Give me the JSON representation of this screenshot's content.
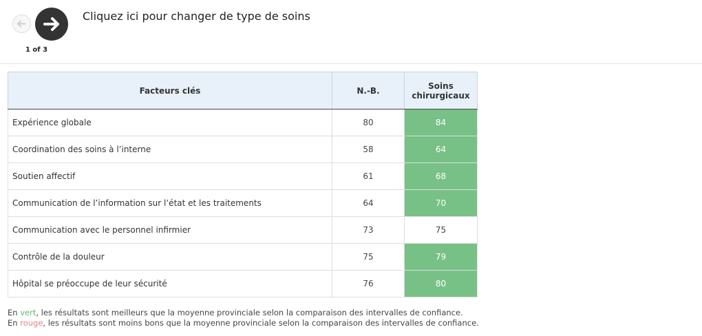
{
  "pager": {
    "position": "1 of 3",
    "title": "Cliquez ici pour changer de type de soins"
  },
  "table": {
    "header": [
      "Facteurs clés",
      "N.-B.",
      "Soins chirurgicaux"
    ],
    "better_color": "#77c186",
    "rows": [
      {
        "label": "Expérience globale",
        "values": [
          80,
          84
        ],
        "better": true
      },
      {
        "label": "Coordination des soins à l’interne",
        "values": [
          58,
          64
        ],
        "better": true
      },
      {
        "label": "Soutien affectif",
        "values": [
          61,
          68
        ],
        "better": true
      },
      {
        "label": "Communication de l’information sur l’état et les traitements",
        "values": [
          64,
          70
        ],
        "better": true
      },
      {
        "label": "Communication avec le personnel infirmier",
        "values": [
          73,
          75
        ],
        "better": false
      },
      {
        "label": "Contrôle de la douleur",
        "values": [
          75,
          79
        ],
        "better": true
      },
      {
        "label": "Hôpital se préoccupe de leur sécurité",
        "values": [
          76,
          80
        ],
        "better": true
      }
    ]
  },
  "notes": [
    {
      "parts": [
        "En ",
        "vert",
        ", les résultats sont meilleurs que la moyenne provinciale selon la comparaison des intervalles de confiance."
      ],
      "color": "#5fb86a"
    },
    {
      "parts": [
        "En ",
        "rouge",
        ", les résultats sont moins bons que la moyenne provinciale selon la comparaison des intervalles de confiance."
      ],
      "color": "#e08585"
    }
  ]
}
